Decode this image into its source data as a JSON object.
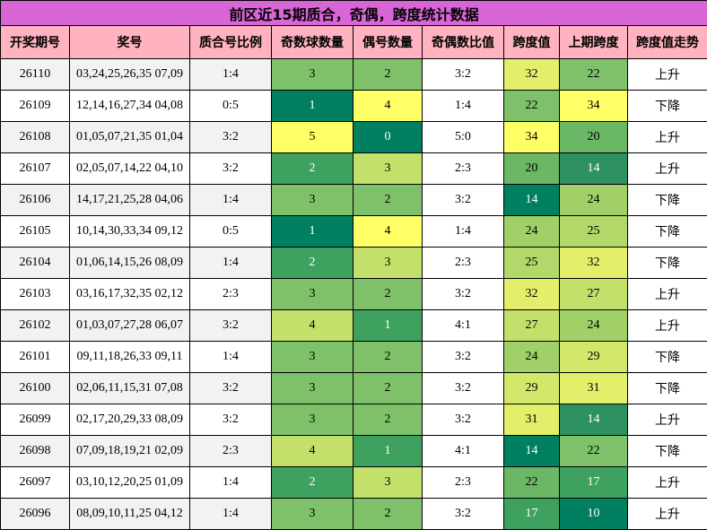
{
  "title": "前区近15期质合，奇偶，跨度统计数据",
  "headers": [
    "开奖期号",
    "奖号",
    "质合号比例",
    "奇数球数量",
    "偶号数量",
    "奇偶数比值",
    "跨度值",
    "上期跨度",
    "跨度值走势"
  ],
  "colors": {
    "title_bg": "#d966d6",
    "header_bg": "#ffb3c1",
    "c1": "#008060",
    "c2": "#3fa15f",
    "c3": "#7fc16a",
    "c4": "#c3e06b",
    "c5": "#ffff66",
    "c0": "#ffff66"
  },
  "rows": [
    {
      "period": "26110",
      "numbers": "03,24,25,26,35 07,09",
      "pc_ratio": "1:4",
      "odd": "3",
      "even": "2",
      "oe_ratio": "3:2",
      "span": "32",
      "prev_span": "22",
      "trend": "上升",
      "odd_color": "#7fc16a",
      "even_color": "#7fc16a",
      "span_color": "#e3ef6a",
      "prev_color": "#7fc16a"
    },
    {
      "period": "26109",
      "numbers": "12,14,16,27,34 04,08",
      "pc_ratio": "0:5",
      "odd": "1",
      "even": "4",
      "oe_ratio": "1:4",
      "span": "22",
      "prev_span": "34",
      "trend": "下降",
      "odd_color": "#008060",
      "even_color": "#ffff66",
      "span_color": "#7fc16a",
      "prev_color": "#ffff66"
    },
    {
      "period": "26108",
      "numbers": "01,05,07,21,35 01,04",
      "pc_ratio": "3:2",
      "odd": "5",
      "even": "0",
      "oe_ratio": "5:0",
      "span": "34",
      "prev_span": "20",
      "trend": "上升",
      "odd_color": "#ffff66",
      "even_color": "#008060",
      "span_color": "#ffff66",
      "prev_color": "#6ab865"
    },
    {
      "period": "26107",
      "numbers": "02,05,07,14,22 04,10",
      "pc_ratio": "3:2",
      "odd": "2",
      "even": "3",
      "oe_ratio": "2:3",
      "span": "20",
      "prev_span": "14",
      "trend": "上升",
      "odd_color": "#3fa15f",
      "even_color": "#c3e06b",
      "span_color": "#6ab865",
      "prev_color": "#2e9160"
    },
    {
      "period": "26106",
      "numbers": "14,17,21,25,28 04,06",
      "pc_ratio": "1:4",
      "odd": "3",
      "even": "2",
      "oe_ratio": "3:2",
      "span": "14",
      "prev_span": "24",
      "trend": "下降",
      "odd_color": "#7fc16a",
      "even_color": "#7fc16a",
      "span_color": "#008060",
      "prev_color": "#a1d068"
    },
    {
      "period": "26105",
      "numbers": "10,14,30,33,34 09,12",
      "pc_ratio": "0:5",
      "odd": "1",
      "even": "4",
      "oe_ratio": "1:4",
      "span": "24",
      "prev_span": "25",
      "trend": "下降",
      "odd_color": "#008060",
      "even_color": "#ffff66",
      "span_color": "#a1d068",
      "prev_color": "#b3d86a"
    },
    {
      "period": "26104",
      "numbers": "01,06,14,15,26 08,09",
      "pc_ratio": "1:4",
      "odd": "2",
      "even": "3",
      "oe_ratio": "2:3",
      "span": "25",
      "prev_span": "32",
      "trend": "下降",
      "odd_color": "#3fa15f",
      "even_color": "#c3e06b",
      "span_color": "#b3d86a",
      "prev_color": "#e3ef6a"
    },
    {
      "period": "26103",
      "numbers": "03,16,17,32,35 02,12",
      "pc_ratio": "2:3",
      "odd": "3",
      "even": "2",
      "oe_ratio": "3:2",
      "span": "32",
      "prev_span": "27",
      "trend": "上升",
      "odd_color": "#7fc16a",
      "even_color": "#7fc16a",
      "span_color": "#e3ef6a",
      "prev_color": "#c3e06b"
    },
    {
      "period": "26102",
      "numbers": "01,03,07,27,28 06,07",
      "pc_ratio": "3:2",
      "odd": "4",
      "even": "1",
      "oe_ratio": "4:1",
      "span": "27",
      "prev_span": "24",
      "trend": "上升",
      "odd_color": "#c3e06b",
      "even_color": "#3fa15f",
      "span_color": "#c3e06b",
      "prev_color": "#a1d068"
    },
    {
      "period": "26101",
      "numbers": "09,11,18,26,33 09,11",
      "pc_ratio": "1:4",
      "odd": "3",
      "even": "2",
      "oe_ratio": "3:2",
      "span": "24",
      "prev_span": "29",
      "trend": "下降",
      "odd_color": "#7fc16a",
      "even_color": "#7fc16a",
      "span_color": "#a1d068",
      "prev_color": "#d3e86b"
    },
    {
      "period": "26100",
      "numbers": "02,06,11,15,31 07,08",
      "pc_ratio": "3:2",
      "odd": "3",
      "even": "2",
      "oe_ratio": "3:2",
      "span": "29",
      "prev_span": "31",
      "trend": "下降",
      "odd_color": "#7fc16a",
      "even_color": "#7fc16a",
      "span_color": "#d3e86b",
      "prev_color": "#e3ef6a"
    },
    {
      "period": "26099",
      "numbers": "02,17,20,29,33 08,09",
      "pc_ratio": "3:2",
      "odd": "3",
      "even": "2",
      "oe_ratio": "3:2",
      "span": "31",
      "prev_span": "14",
      "trend": "上升",
      "odd_color": "#7fc16a",
      "even_color": "#7fc16a",
      "span_color": "#e3ef6a",
      "prev_color": "#2e9160"
    },
    {
      "period": "26098",
      "numbers": "07,09,18,19,21 02,09",
      "pc_ratio": "2:3",
      "odd": "4",
      "even": "1",
      "oe_ratio": "4:1",
      "span": "14",
      "prev_span": "22",
      "trend": "下降",
      "odd_color": "#c3e06b",
      "even_color": "#3fa15f",
      "span_color": "#008060",
      "prev_color": "#7fc16a"
    },
    {
      "period": "26097",
      "numbers": "03,10,12,20,25 01,09",
      "pc_ratio": "1:4",
      "odd": "2",
      "even": "3",
      "oe_ratio": "2:3",
      "span": "22",
      "prev_span": "17",
      "trend": "上升",
      "odd_color": "#3fa15f",
      "even_color": "#c3e06b",
      "span_color": "#6ab865",
      "prev_color": "#3fa15f"
    },
    {
      "period": "26096",
      "numbers": "08,09,10,11,25 04,12",
      "pc_ratio": "1:4",
      "odd": "3",
      "even": "2",
      "oe_ratio": "3:2",
      "span": "17",
      "prev_span": "10",
      "trend": "上升",
      "odd_color": "#7fc16a",
      "even_color": "#7fc16a",
      "span_color": "#3fa15f",
      "prev_color": "#008060"
    }
  ]
}
